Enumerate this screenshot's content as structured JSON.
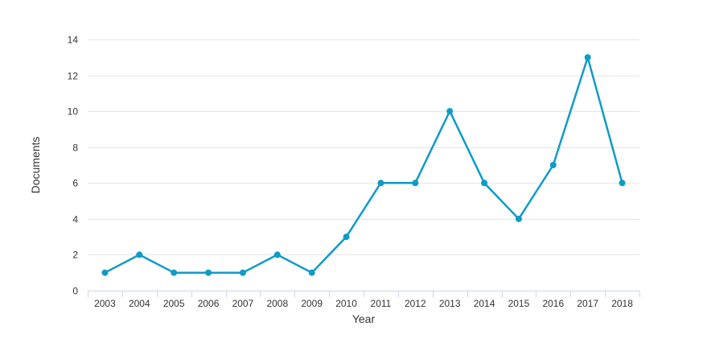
{
  "chart_data": {
    "type": "line",
    "title": "",
    "xlabel": "Year",
    "ylabel": "Documents",
    "x": [
      "2003",
      "2004",
      "2005",
      "2006",
      "2007",
      "2008",
      "2009",
      "2010",
      "2011",
      "2012",
      "2013",
      "2014",
      "2015",
      "2016",
      "2017",
      "2018"
    ],
    "series": [
      {
        "values": [
          1,
          2,
          1,
          1,
          1,
          2,
          1,
          3,
          6,
          6,
          10,
          6,
          4,
          7,
          13,
          6
        ]
      }
    ],
    "yticks": [
      0,
      2,
      4,
      6,
      8,
      10,
      12,
      14
    ],
    "ylim": [
      0,
      14
    ],
    "grid": true,
    "legend": "none",
    "colors": {
      "series": "#0f9bc8",
      "grid": "#e6e6e6",
      "axis": "#ccd6eb",
      "text": "#333333"
    }
  }
}
